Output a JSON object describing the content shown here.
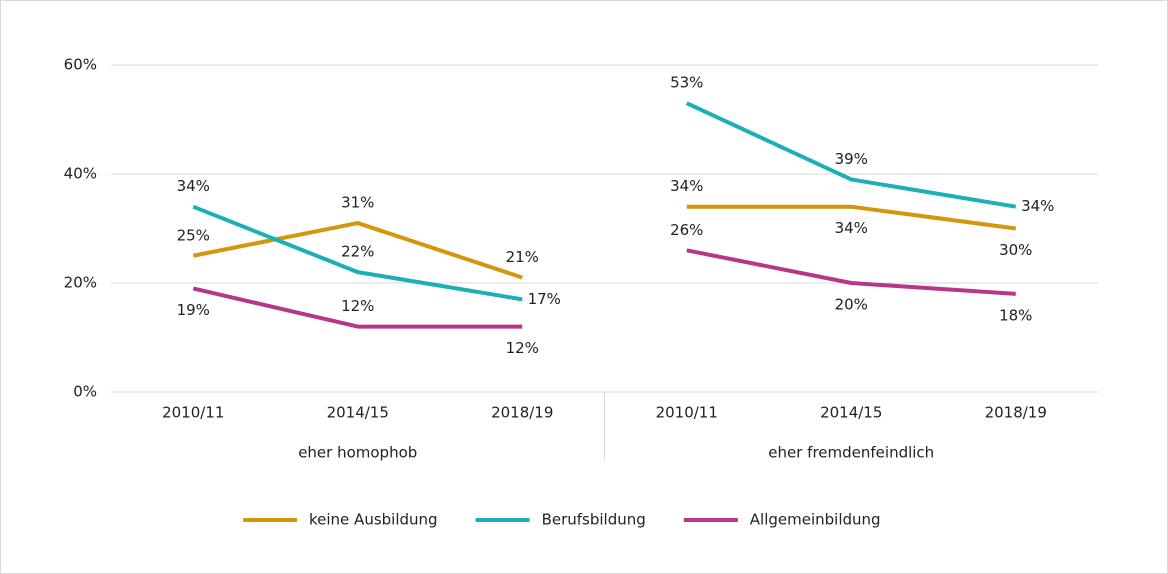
{
  "chart_data": {
    "type": "line",
    "ylim": [
      0,
      60
    ],
    "yticks": [
      {
        "value": 0,
        "label": "0%"
      },
      {
        "value": 20,
        "label": "20%"
      },
      {
        "value": 40,
        "label": "40%"
      },
      {
        "value": 60,
        "label": "60%"
      }
    ],
    "grid": true,
    "legend": "bottom",
    "groups": [
      {
        "name": "eher homophob",
        "categories": [
          "2010/11",
          "2014/15",
          "2018/19"
        ]
      },
      {
        "name": "eher fremdenfeindlich",
        "categories": [
          "2010/11",
          "2014/15",
          "2018/19"
        ]
      }
    ],
    "series": [
      {
        "name": "keine Ausbildung",
        "color": "#d4960a",
        "values": [
          [
            25,
            31,
            21
          ],
          [
            34,
            34,
            30
          ]
        ],
        "value_labels": [
          [
            "25%",
            "31%",
            "21%"
          ],
          [
            "34%",
            "34%",
            "30%"
          ]
        ]
      },
      {
        "name": "Berufsbildung",
        "color": "#1bb0b8",
        "values": [
          [
            34,
            22,
            17
          ],
          [
            53,
            39,
            34
          ]
        ],
        "value_labels": [
          [
            "34%",
            "22%",
            "17%"
          ],
          [
            "53%",
            "39%",
            "34%"
          ]
        ]
      },
      {
        "name": "Allgemeinbildung",
        "color": "#b8368a",
        "values": [
          [
            19,
            12,
            12
          ],
          [
            26,
            20,
            18
          ]
        ],
        "value_labels": [
          [
            "19%",
            "12%",
            "12%"
          ],
          [
            "26%",
            "20%",
            "18%"
          ]
        ]
      }
    ]
  }
}
